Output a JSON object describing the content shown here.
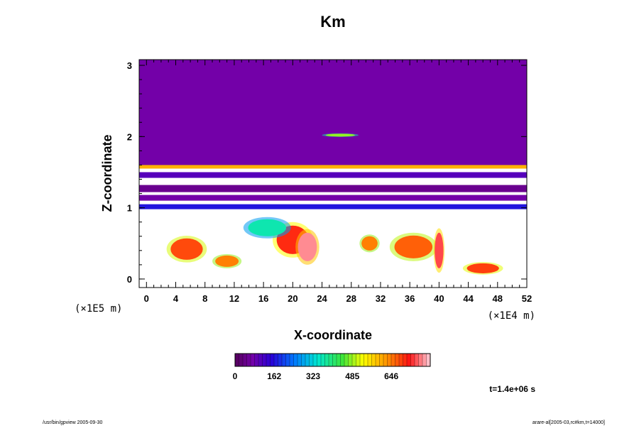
{
  "chart_data": {
    "type": "heatmap",
    "title": "Km",
    "xlabel": "X-coordinate",
    "ylabel": "Z-coordinate",
    "x_unit": "(×1E4 m)",
    "y_unit": "(×1E5 m)",
    "xlim": [
      -1,
      52
    ],
    "ylim": [
      -0.12,
      3.08
    ],
    "x_ticks": [
      0,
      4,
      8,
      12,
      16,
      20,
      24,
      28,
      32,
      36,
      40,
      44,
      48,
      52
    ],
    "y_ticks": [
      0,
      1,
      2,
      3
    ],
    "layers": [
      {
        "name": "upper",
        "z_bottom": 1.6,
        "z_top": 3.08,
        "level": 0
      },
      {
        "name": "transition-band",
        "z_bottom": 1.55,
        "z_top": 1.6,
        "level": 0.75
      },
      {
        "name": "band-a",
        "z_bottom": 1.42,
        "z_top": 1.5,
        "level": 0.12
      },
      {
        "name": "band-b",
        "z_bottom": 1.22,
        "z_top": 1.32,
        "level": 0.05
      },
      {
        "name": "band-c",
        "z_bottom": 1.1,
        "z_top": 1.18,
        "level": 0.08
      },
      {
        "name": "band-d",
        "z_bottom": 0.98,
        "z_top": 1.05,
        "level": 0.2
      }
    ],
    "blobs": [
      {
        "x": 20,
        "z": 0.55,
        "rx": 2.2,
        "rz": 0.2,
        "level": 0.88
      },
      {
        "x": 22,
        "z": 0.45,
        "rx": 1.3,
        "rz": 0.2,
        "level": 0.97
      },
      {
        "x": 16.5,
        "z": 0.72,
        "rx": 2.6,
        "rz": 0.12,
        "level": 0.45
      },
      {
        "x": 5.5,
        "z": 0.42,
        "rx": 2.2,
        "rz": 0.15,
        "level": 0.85
      },
      {
        "x": 36.5,
        "z": 0.45,
        "rx": 2.6,
        "rz": 0.16,
        "level": 0.83
      },
      {
        "x": 40,
        "z": 0.4,
        "rx": 0.6,
        "rz": 0.25,
        "level": 0.93
      },
      {
        "x": 30.5,
        "z": 0.5,
        "rx": 1.1,
        "rz": 0.1,
        "level": 0.8
      },
      {
        "x": 46,
        "z": 0.15,
        "rx": 2.2,
        "rz": 0.07,
        "level": 0.86
      },
      {
        "x": 11,
        "z": 0.25,
        "rx": 1.6,
        "rz": 0.08,
        "level": 0.8
      },
      {
        "x": 26.5,
        "z": 2.02,
        "rx": 2.0,
        "rz": 0.02,
        "level": 0.6
      }
    ],
    "colorbar": {
      "ticks": [
        "0",
        "162",
        "323",
        "485",
        "646"
      ],
      "vmin": 0,
      "vmax": 807,
      "n_levels": 50
    }
  },
  "annotations": {
    "time": "t=1.4e+06 s",
    "footer_left": "/usr/bin/gpview 2005-09-30",
    "footer_right": "arare-al[2005-03,rc#km,t=14000]"
  },
  "colors": {
    "low": "#7300a8",
    "mid": "#ffff00",
    "high": "#ff1010",
    "none": "#ffffff"
  }
}
